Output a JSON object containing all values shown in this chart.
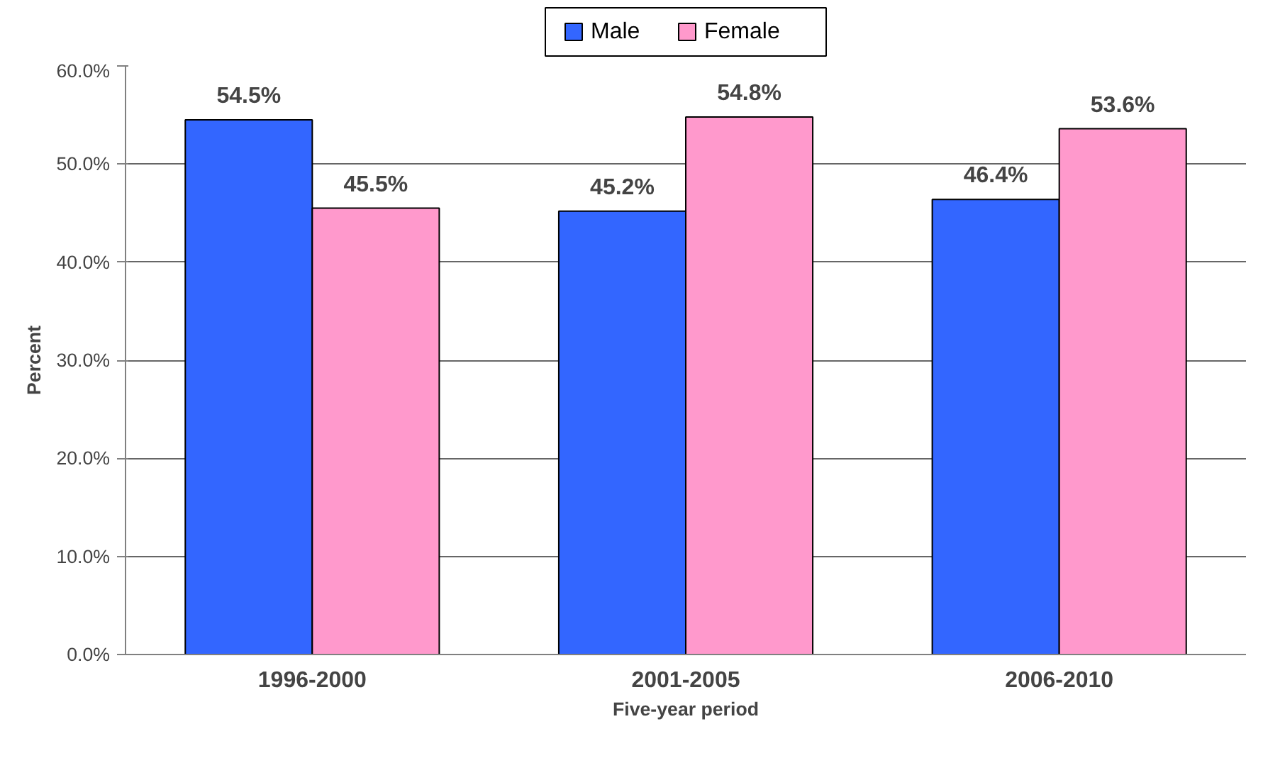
{
  "chart_data": {
    "type": "bar",
    "xlabel": "Five-year period",
    "ylabel": "Percent",
    "categories": [
      "1996-2000",
      "2001-2005",
      "2006-2010"
    ],
    "series": [
      {
        "name": "Male",
        "color": "#3366ff",
        "values": [
          54.5,
          45.2,
          46.4
        ],
        "value_labels": [
          "54.5%",
          "45.2%",
          "46.4%"
        ]
      },
      {
        "name": "Female",
        "color": "#ff99cc",
        "values": [
          45.5,
          54.8,
          53.6
        ],
        "value_labels": [
          "45.5%",
          "54.8%",
          "53.6%"
        ]
      }
    ],
    "ylim": [
      0,
      60
    ],
    "yticks": [
      {
        "value": 0,
        "label": "0.0%"
      },
      {
        "value": 10,
        "label": "10.0%"
      },
      {
        "value": 20,
        "label": "20.0%"
      },
      {
        "value": 30,
        "label": "30.0%"
      },
      {
        "value": 40,
        "label": "40.0%"
      },
      {
        "value": 50,
        "label": "50.0%"
      },
      {
        "value": 60,
        "label": "60.0%"
      }
    ],
    "grid": "y",
    "legend": "top"
  }
}
